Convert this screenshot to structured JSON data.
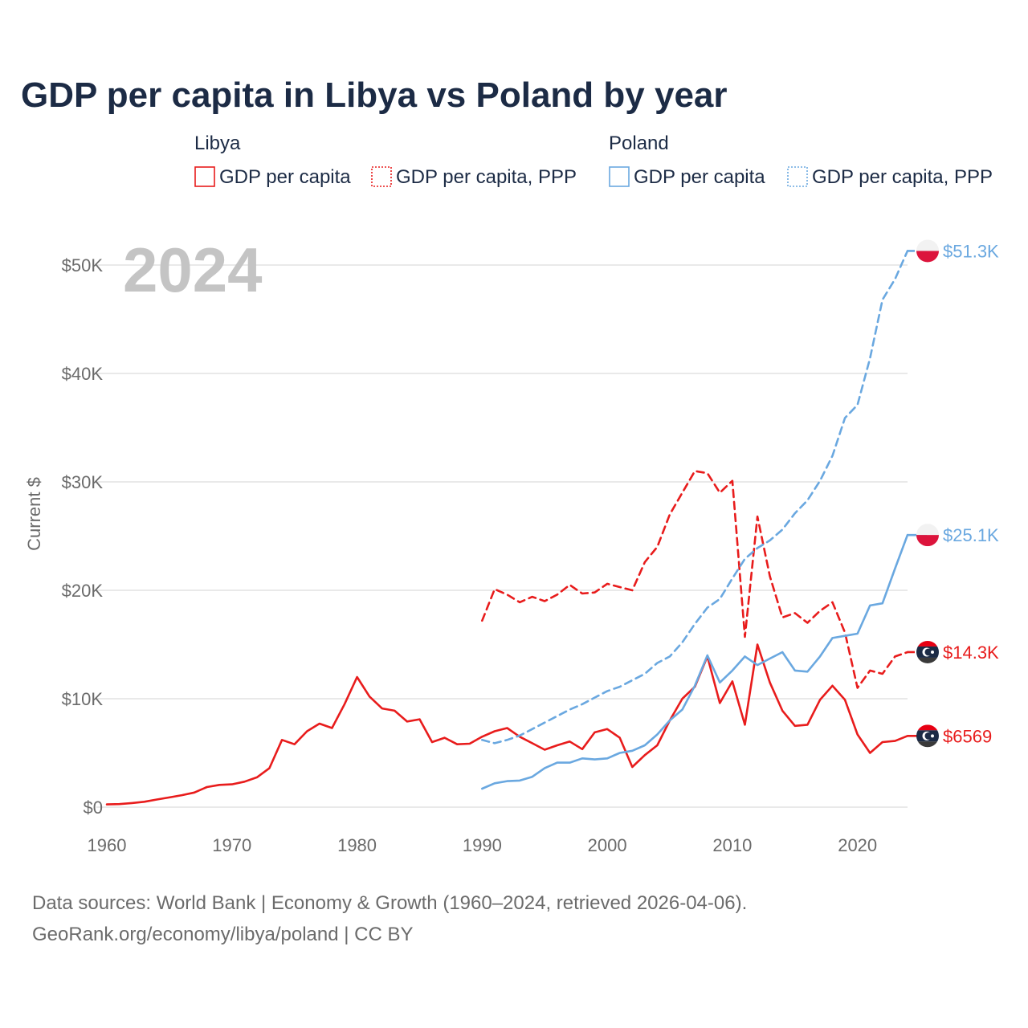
{
  "title": "GDP per capita in Libya vs Poland by year",
  "year_badge": "2024",
  "colors": {
    "libya": "#e81c1c",
    "poland": "#6aa8e0",
    "text": "#1c2b45",
    "muted": "#6b6b6b"
  },
  "legend": {
    "groups": [
      {
        "name": "Libya",
        "items": [
          {
            "label": "GDP per capita",
            "style": "solid"
          },
          {
            "label": "GDP per capita, PPP",
            "style": "dashed"
          }
        ]
      },
      {
        "name": "Poland",
        "items": [
          {
            "label": "GDP per capita",
            "style": "solid"
          },
          {
            "label": "GDP per capita, PPP",
            "style": "dashed"
          }
        ]
      }
    ]
  },
  "footer": {
    "line1": "Data sources: World Bank | Economy & Growth (1960–2024, retrieved 2026-04-06).",
    "line2": "GeoRank.org/economy/libya/poland | CC BY"
  },
  "chart_data": {
    "type": "line",
    "title": "GDP per capita in Libya vs Poland by year",
    "xlabel": "",
    "ylabel": "Current $",
    "xlim": [
      1960,
      2024
    ],
    "ylim": [
      0,
      52000
    ],
    "x_ticks": [
      1960,
      1970,
      1980,
      1990,
      2000,
      2010,
      2020
    ],
    "y_ticks": [
      0,
      10000,
      20000,
      30000,
      40000,
      50000
    ],
    "y_tick_labels": [
      "$0",
      "$10K",
      "$20K",
      "$30K",
      "$40K",
      "$50K"
    ],
    "grid": true,
    "series": [
      {
        "name": "Libya GDP per capita",
        "country": "libya",
        "style": "solid",
        "end_label": "$6569",
        "flag": "libya",
        "x": [
          1960,
          1961,
          1962,
          1963,
          1964,
          1965,
          1966,
          1967,
          1968,
          1969,
          1970,
          1971,
          1972,
          1973,
          1974,
          1975,
          1976,
          1977,
          1978,
          1979,
          1980,
          1981,
          1982,
          1983,
          1984,
          1985,
          1986,
          1987,
          1988,
          1989,
          1990,
          1991,
          1992,
          1993,
          1994,
          1995,
          1996,
          1997,
          1998,
          1999,
          2000,
          2001,
          2002,
          2003,
          2004,
          2005,
          2006,
          2007,
          2008,
          2009,
          2010,
          2011,
          2012,
          2013,
          2014,
          2015,
          2016,
          2017,
          2018,
          2019,
          2020,
          2021,
          2022,
          2023,
          2024
        ],
        "values": [
          250,
          280,
          380,
          500,
          700,
          900,
          1100,
          1350,
          1850,
          2050,
          2100,
          2350,
          2750,
          3600,
          6200,
          5800,
          7000,
          7700,
          7300,
          9500,
          12000,
          10200,
          9100,
          8900,
          7900,
          8100,
          6000,
          6400,
          5800,
          5850,
          6500,
          7000,
          7300,
          6500,
          5900,
          5300,
          5700,
          6050,
          5350,
          6900,
          7200,
          6400,
          3700,
          4800,
          5700,
          8000,
          10000,
          11100,
          13900,
          9600,
          11600,
          7600,
          15000,
          11500,
          8900,
          7500,
          7600,
          9900,
          11200,
          9900,
          6700,
          5000,
          6000,
          6100,
          6569
        ]
      },
      {
        "name": "Libya GDP per capita, PPP",
        "country": "libya",
        "style": "dashed",
        "end_label": "$14.3K",
        "flag": "libya",
        "x": [
          1990,
          1991,
          1992,
          1993,
          1994,
          1995,
          1996,
          1997,
          1998,
          1999,
          2000,
          2001,
          2002,
          2003,
          2004,
          2005,
          2006,
          2007,
          2008,
          2009,
          2010,
          2011,
          2012,
          2013,
          2014,
          2015,
          2016,
          2017,
          2018,
          2019,
          2020,
          2021,
          2022,
          2023,
          2024
        ],
        "values": [
          17200,
          20100,
          19600,
          18900,
          19400,
          19000,
          19600,
          20500,
          19700,
          19800,
          20600,
          20300,
          20000,
          22600,
          24000,
          27000,
          29000,
          31000,
          30800,
          29000,
          30100,
          15700,
          26800,
          21300,
          17500,
          17900,
          17000,
          18100,
          18900,
          16100,
          11000,
          12600,
          12300,
          13900,
          14300
        ]
      },
      {
        "name": "Poland GDP per capita",
        "country": "poland",
        "style": "solid",
        "end_label": "$25.1K",
        "flag": "poland",
        "x": [
          1990,
          1991,
          1992,
          1993,
          1994,
          1995,
          1996,
          1997,
          1998,
          1999,
          2000,
          2001,
          2002,
          2003,
          2004,
          2005,
          2006,
          2007,
          2008,
          2009,
          2010,
          2011,
          2012,
          2013,
          2014,
          2015,
          2016,
          2017,
          2018,
          2019,
          2020,
          2021,
          2022,
          2023,
          2024
        ],
        "values": [
          1700,
          2200,
          2400,
          2450,
          2800,
          3600,
          4100,
          4100,
          4500,
          4400,
          4500,
          5000,
          5200,
          5700,
          6700,
          8000,
          9000,
          11200,
          14000,
          11500,
          12600,
          13900,
          13100,
          13700,
          14300,
          12600,
          12500,
          13900,
          15600,
          15800,
          16000,
          18600,
          18800,
          22000,
          25100
        ]
      },
      {
        "name": "Poland GDP per capita, PPP",
        "country": "poland",
        "style": "dashed",
        "end_label": "$51.3K",
        "flag": "poland",
        "x": [
          1990,
          1991,
          1992,
          1993,
          1994,
          1995,
          1996,
          1997,
          1998,
          1999,
          2000,
          2001,
          2002,
          2003,
          2004,
          2005,
          2006,
          2007,
          2008,
          2009,
          2010,
          2011,
          2012,
          2013,
          2014,
          2015,
          2016,
          2017,
          2018,
          2019,
          2020,
          2021,
          2022,
          2023,
          2024
        ],
        "values": [
          6200,
          5900,
          6200,
          6600,
          7200,
          7800,
          8400,
          9000,
          9500,
          10100,
          10700,
          11100,
          11700,
          12300,
          13300,
          13900,
          15200,
          16900,
          18400,
          19200,
          21100,
          22900,
          23900,
          24600,
          25600,
          27100,
          28300,
          30100,
          32400,
          35900,
          37100,
          41400,
          46800,
          48700,
          51300
        ]
      }
    ]
  }
}
